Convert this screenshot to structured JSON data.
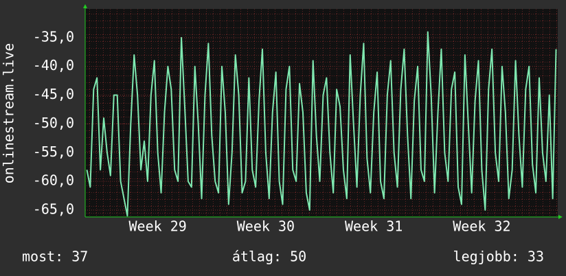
{
  "chart_data": {
    "type": "line",
    "y_label": "onlinestream.live",
    "categories": [
      null,
      null,
      null,
      null,
      null,
      null,
      null,
      null,
      null,
      null,
      null,
      null,
      null,
      null,
      null,
      null,
      null,
      null,
      null,
      null,
      null,
      "Week 29",
      null,
      null,
      null,
      null,
      null,
      null,
      null,
      null,
      null,
      null,
      null,
      null,
      null,
      null,
      null,
      null,
      null,
      null,
      null,
      null,
      null,
      null,
      null,
      null,
      null,
      null,
      null,
      null,
      null,
      null,
      null,
      "Week 30",
      null,
      null,
      null,
      null,
      null,
      null,
      null,
      null,
      null,
      null,
      null,
      null,
      null,
      null,
      null,
      null,
      null,
      null,
      null,
      null,
      null,
      null,
      null,
      null,
      null,
      null,
      null,
      null,
      null,
      null,
      null,
      "Week 31",
      null,
      null,
      null,
      null,
      null,
      null,
      null,
      null,
      null,
      null,
      null,
      null,
      null,
      null,
      null,
      null,
      null,
      null,
      null,
      null,
      null,
      null,
      null,
      null,
      null,
      null,
      null,
      null,
      null,
      null,
      null,
      "Week 32",
      null,
      null,
      null,
      null,
      null,
      null,
      null,
      null,
      null,
      null,
      null,
      null,
      null,
      null,
      null,
      null,
      null,
      null,
      null,
      null,
      null,
      null
    ],
    "series": [
      {
        "name": "onlinestream.live",
        "color": "#7fe8b0",
        "values": [
          -58,
          -61,
          -44,
          -42,
          -58,
          -49,
          -55,
          -59,
          -45,
          -45,
          -60,
          -63,
          -66,
          -50,
          -38,
          -45,
          -58,
          -53,
          -60,
          -45,
          -39,
          -55,
          -62,
          -48,
          -40,
          -44,
          -58,
          -60,
          -35,
          -47,
          -60,
          -61,
          -40,
          -50,
          -63,
          -45,
          -36,
          -52,
          -60,
          -62,
          -40,
          -48,
          -64,
          -55,
          -38,
          -45,
          -62,
          -60,
          -42,
          -58,
          -61,
          -46,
          -37,
          -55,
          -63,
          -48,
          -41,
          -60,
          -64,
          -44,
          -40,
          -58,
          -60,
          -43,
          -48,
          -62,
          -65,
          -39,
          -52,
          -60,
          -45,
          -42,
          -55,
          -62,
          -44,
          -47,
          -58,
          -63,
          -38,
          -50,
          -61,
          -45,
          -36,
          -56,
          -62,
          -48,
          -41,
          -60,
          -63,
          -45,
          -39,
          -55,
          -61,
          -44,
          -37,
          -52,
          -63,
          -46,
          -40,
          -58,
          -60,
          -34,
          -45,
          -62,
          -48,
          -37,
          -55,
          -60,
          -44,
          -41,
          -61,
          -64,
          -38,
          -50,
          -62,
          -46,
          -39,
          -58,
          -65,
          -44,
          -37,
          -55,
          -60,
          -40,
          -48,
          -63,
          -58,
          -39,
          -52,
          -61,
          -44,
          -40,
          -57,
          -62,
          -42,
          -55,
          -60,
          -45,
          -63,
          -37
        ]
      }
    ],
    "ylim": [
      -66.2,
      -30
    ],
    "yticks": [
      {
        "value": -65,
        "label": "-65,0"
      },
      {
        "value": -60,
        "label": "-60,0"
      },
      {
        "value": -55,
        "label": "-55,0"
      },
      {
        "value": -50,
        "label": "-50,0"
      },
      {
        "value": -45,
        "label": "-45,0"
      },
      {
        "value": -40,
        "label": "-40,0"
      },
      {
        "value": -35,
        "label": "-35,0"
      }
    ],
    "grid": true,
    "footer": [
      "most: 37",
      "átlag: 50",
      "legjobb: 33"
    ]
  }
}
